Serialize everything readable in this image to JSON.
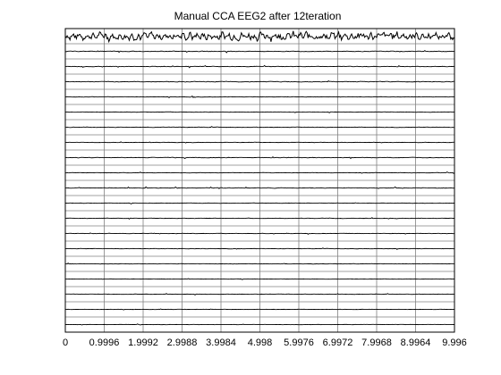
{
  "chart_data": {
    "type": "line",
    "title": "Manual CCA EEG2 after  12teration",
    "xlabel": "",
    "ylabel": "",
    "x_ticks": [
      "0",
      "0.9996",
      "1.9992",
      "2.9988",
      "3.9984",
      "4.998",
      "5.9976",
      "6.9972",
      "7.9968",
      "8.9964",
      "9.996"
    ],
    "xlim": [
      0,
      9.996
    ],
    "grid": true,
    "legend": "none",
    "channel_count": 20,
    "series_amplitude": [
      1.0,
      0.06,
      0.05,
      0.06,
      0.04,
      0.04,
      0.05,
      0.04,
      0.05,
      0.04,
      0.05,
      0.04,
      0.04,
      0.04,
      0.04,
      0.04,
      0.03,
      0.04,
      0.03,
      0.03
    ],
    "line_color": "#000000",
    "grid_color": "#808080"
  }
}
